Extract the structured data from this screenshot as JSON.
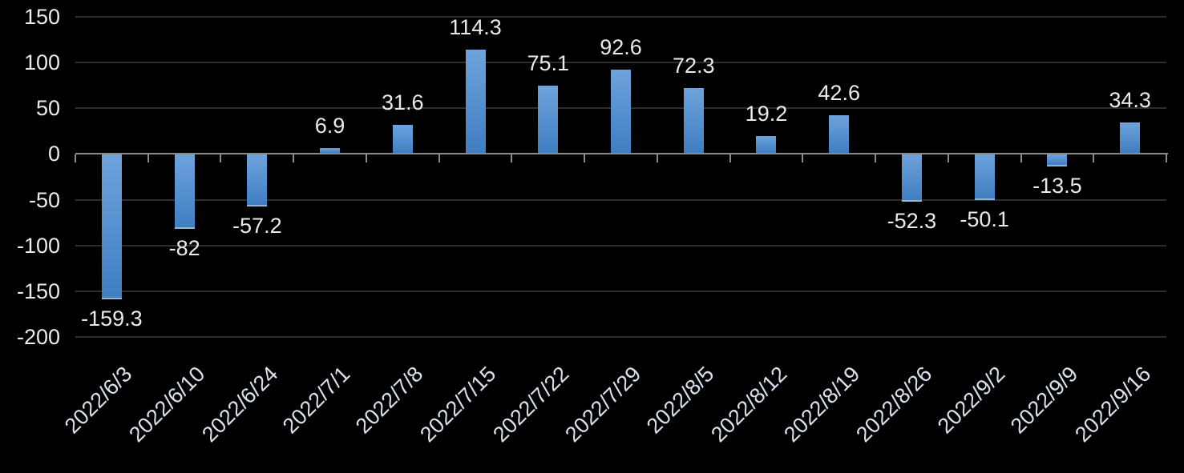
{
  "chart_data": {
    "type": "bar",
    "title": "",
    "xlabel": "",
    "ylabel": "",
    "categories": [
      "2022/6/3",
      "2022/6/10",
      "2022/6/24",
      "2022/7/1",
      "2022/7/8",
      "2022/7/15",
      "2022/7/22",
      "2022/7/29",
      "2022/8/5",
      "2022/8/12",
      "2022/8/19",
      "2022/8/26",
      "2022/9/2",
      "2022/9/9",
      "2022/9/16"
    ],
    "values": [
      -159.3,
      -82,
      -57.2,
      6.9,
      31.6,
      114.3,
      75.1,
      92.6,
      72.3,
      19.2,
      42.6,
      -52.3,
      -50.1,
      -13.5,
      34.3
    ],
    "value_labels": [
      "-159.3",
      "-82",
      "-57.2",
      "6.9",
      "31.6",
      "114.3",
      "75.1",
      "92.6",
      "72.3",
      "19.2",
      "42.6",
      "-52.3",
      "-50.1",
      "-13.5",
      "34.3"
    ],
    "y_ticks": [
      150,
      100,
      50,
      0,
      -50,
      -100,
      -150,
      -200
    ],
    "y_tick_labels": [
      "150",
      "100",
      "50",
      "0",
      "-50",
      "-100",
      "-150",
      "-200"
    ],
    "ylim": [
      -200,
      150
    ],
    "grid": true,
    "legend": "none",
    "x_label_rotation_deg": -45,
    "colors": {
      "background": "#000000",
      "bar_top": "#6ea3dc",
      "bar_bottom": "#3f7ec2",
      "gridline": "#2d2d2d",
      "axis": "#8a8a8a",
      "value_text": "#eceae7",
      "y_tick_text": "#edebe8",
      "date_text": "#d9e2ee"
    }
  }
}
